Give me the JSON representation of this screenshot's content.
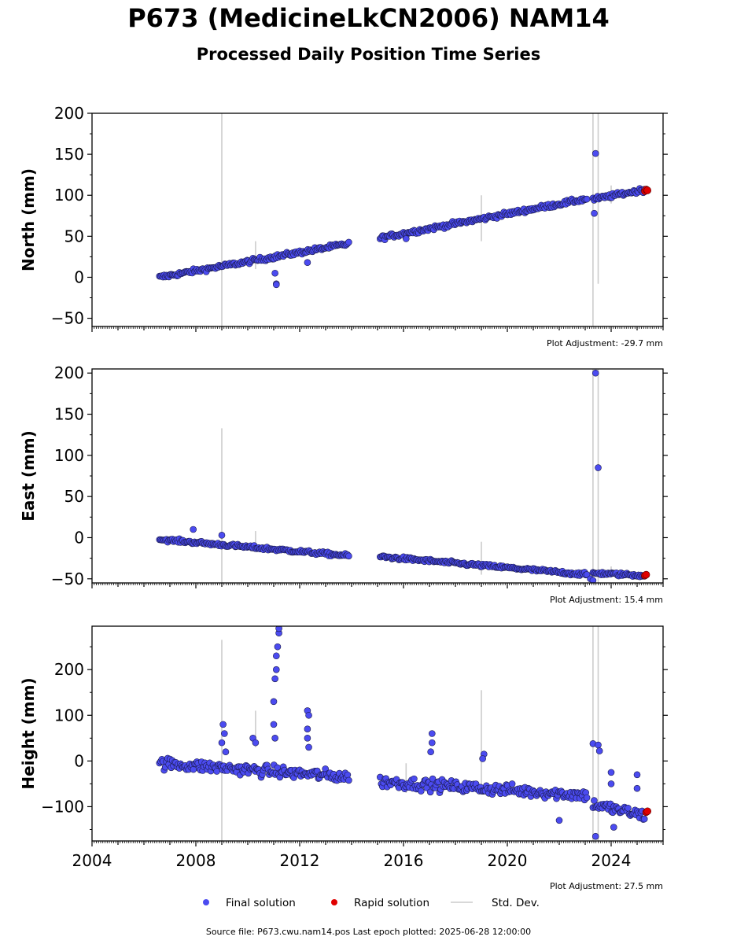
{
  "header": {
    "title": "P673 (MedicineLkCN2006) NAM14",
    "subtitle": "Processed Daily Position Time Series"
  },
  "footer": {
    "source_text": "Source file: P673.cwu.nam14.pos  Last epoch plotted: 2025-06-28 12:00:00"
  },
  "legend": {
    "placement": "bottom-center",
    "items": [
      {
        "label": "Final solution",
        "color": "#4b4bf0",
        "kind": "marker"
      },
      {
        "label": "Rapid solution",
        "color": "#e00000",
        "kind": "marker"
      },
      {
        "label": "Std. Dev.",
        "color": "#cccccc",
        "kind": "line"
      }
    ]
  },
  "chart_data": [
    {
      "type": "scatter",
      "id": "north",
      "ylabel": "North (mm)",
      "xlim": [
        2004,
        2026
      ],
      "ylim": [
        -60,
        200
      ],
      "yticks": [
        -50,
        0,
        50,
        100,
        150,
        200
      ],
      "show_xtick_labels": false,
      "adjustment": "Plot Adjustment: -29.7 mm",
      "segments": [
        {
          "x0": 2006.6,
          "x1": 2013.9,
          "y0": 0,
          "y1": 41,
          "noise": 2.5
        },
        {
          "x0": 2015.1,
          "x1": 2023.1,
          "y0": 48,
          "y1": 96,
          "noise": 2.5
        },
        {
          "x0": 2023.3,
          "x1": 2025.3,
          "y0": 95,
          "y1": 107,
          "noise": 2.5
        }
      ],
      "outliers": [
        [
          2011.1,
          -8
        ],
        [
          2011.1,
          -9
        ],
        [
          2011.05,
          5
        ],
        [
          2012.3,
          18
        ],
        [
          2016.1,
          47
        ],
        [
          2023.4,
          151
        ],
        [
          2023.35,
          78
        ]
      ],
      "rapid": [
        [
          2025.3,
          105
        ],
        [
          2025.35,
          107
        ],
        [
          2025.4,
          106
        ]
      ],
      "stddev_bars": [
        [
          2009.0,
          -60,
          200
        ],
        [
          2010.3,
          10,
          44
        ],
        [
          2019.0,
          44,
          100
        ],
        [
          2023.3,
          -60,
          200
        ],
        [
          2023.5,
          -8,
          200
        ],
        [
          2024.0,
          90,
          112
        ]
      ]
    },
    {
      "type": "scatter",
      "id": "east",
      "ylabel": "East (mm)",
      "xlim": [
        2004,
        2026
      ],
      "ylim": [
        -55,
        205
      ],
      "yticks": [
        -50,
        0,
        50,
        100,
        150,
        200
      ],
      "show_xtick_labels": false,
      "adjustment": "Plot Adjustment: 15.4 mm",
      "segments": [
        {
          "x0": 2006.6,
          "x1": 2013.9,
          "y0": -2,
          "y1": -22,
          "noise": 2
        },
        {
          "x0": 2015.1,
          "x1": 2023.1,
          "y0": -23,
          "y1": -45,
          "noise": 2
        },
        {
          "x0": 2023.3,
          "x1": 2025.3,
          "y0": -43,
          "y1": -46,
          "noise": 2
        }
      ],
      "outliers": [
        [
          2007.9,
          10
        ],
        [
          2009.0,
          3
        ],
        [
          2023.4,
          200
        ],
        [
          2023.5,
          85
        ],
        [
          2023.2,
          -50
        ],
        [
          2023.3,
          -52
        ]
      ],
      "rapid": [
        [
          2025.3,
          -46
        ],
        [
          2025.35,
          -45
        ]
      ],
      "stddev_bars": [
        [
          2009.0,
          -55,
          133
        ],
        [
          2010.3,
          -12,
          8
        ],
        [
          2019.0,
          -45,
          -5
        ],
        [
          2023.3,
          -55,
          205
        ],
        [
          2023.5,
          -55,
          205
        ],
        [
          2024.0,
          -48,
          -35
        ]
      ]
    },
    {
      "type": "scatter",
      "id": "height",
      "ylabel": "Height (mm)",
      "xlim": [
        2004,
        2026
      ],
      "ylim": [
        -175,
        295
      ],
      "yticks": [
        -100,
        0,
        100,
        200
      ],
      "show_xtick_labels": true,
      "xticks": [
        2004,
        2008,
        2012,
        2016,
        2020,
        2024
      ],
      "adjustment": "Plot Adjustment: 27.5 mm",
      "segments": [
        {
          "x0": 2006.6,
          "x1": 2013.9,
          "y0": -5,
          "y1": -35,
          "noise": 12
        },
        {
          "x0": 2015.1,
          "x1": 2023.1,
          "y0": -45,
          "y1": -75,
          "noise": 12
        },
        {
          "x0": 2023.3,
          "x1": 2025.3,
          "y0": -95,
          "y1": -120,
          "noise": 12
        }
      ],
      "outliers": [
        [
          2009.05,
          80
        ],
        [
          2009.1,
          60
        ],
        [
          2009.0,
          40
        ],
        [
          2009.15,
          20
        ],
        [
          2010.2,
          50
        ],
        [
          2010.3,
          40
        ],
        [
          2011.0,
          130
        ],
        [
          2011.05,
          180
        ],
        [
          2011.1,
          200
        ],
        [
          2011.1,
          230
        ],
        [
          2011.15,
          250
        ],
        [
          2011.2,
          280
        ],
        [
          2011.2,
          290
        ],
        [
          2011.0,
          80
        ],
        [
          2011.05,
          50
        ],
        [
          2012.3,
          110
        ],
        [
          2012.35,
          100
        ],
        [
          2012.3,
          70
        ],
        [
          2012.3,
          50
        ],
        [
          2012.35,
          30
        ],
        [
          2017.1,
          60
        ],
        [
          2017.1,
          40
        ],
        [
          2017.05,
          20
        ],
        [
          2019.1,
          15
        ],
        [
          2019.05,
          5
        ],
        [
          2022.0,
          -130
        ],
        [
          2023.3,
          38
        ],
        [
          2023.5,
          35
        ],
        [
          2023.55,
          22
        ],
        [
          2023.4,
          -165
        ],
        [
          2024.0,
          -25
        ],
        [
          2024.0,
          -50
        ],
        [
          2024.1,
          -145
        ],
        [
          2025.0,
          -30
        ],
        [
          2025.0,
          -60
        ]
      ],
      "rapid": [
        [
          2025.35,
          -112
        ],
        [
          2025.4,
          -110
        ]
      ],
      "stddev_bars": [
        [
          2009.0,
          -175,
          265
        ],
        [
          2010.3,
          30,
          110
        ],
        [
          2019.0,
          -60,
          155
        ],
        [
          2023.3,
          -175,
          295
        ],
        [
          2023.5,
          -175,
          295
        ],
        [
          2016.1,
          -70,
          -5
        ]
      ]
    }
  ]
}
